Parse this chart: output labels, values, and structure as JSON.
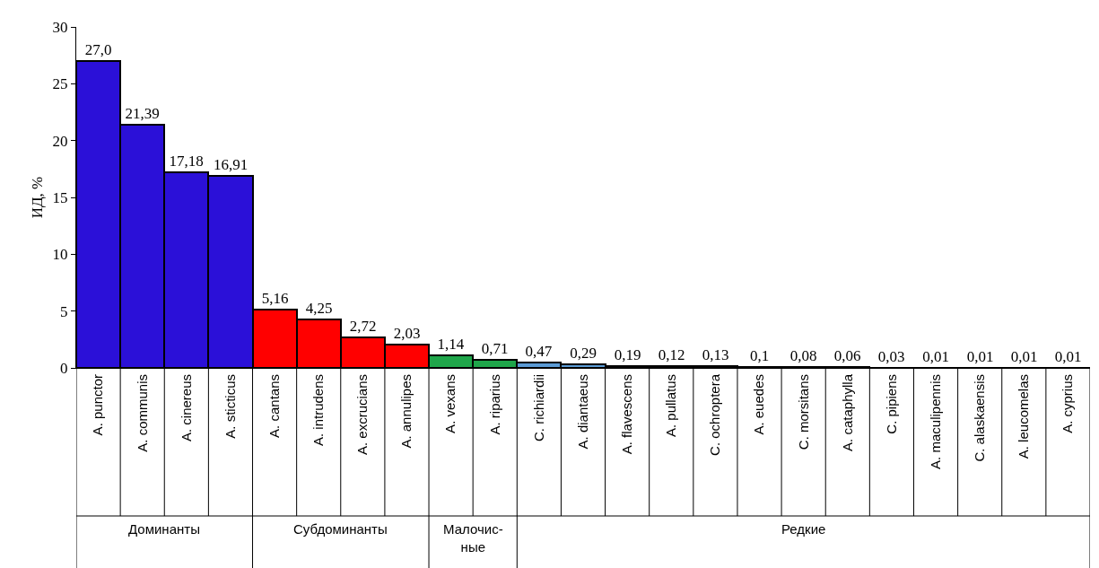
{
  "chart_data": {
    "type": "bar",
    "ylabel": "ИД, %",
    "categories": [
      "A. punctor",
      "A. communis",
      "A. cinereus",
      "A. sticticus",
      "A. cantans",
      "A. intrudens",
      "A. excrucians",
      "A. annulipes",
      "A. vexans",
      "A. riparius",
      "C. richiardii",
      "A. diantaeus",
      "A. flavescens",
      "A. pullatus",
      "C. ochroptera",
      "A. euedes",
      "C. morsitans",
      "A. cataphylla",
      "C. pipiens",
      "A. maculipennis",
      "C. alaskaensis",
      "A. leucomelas",
      "A. cyprius"
    ],
    "values": [
      27.0,
      21.39,
      17.18,
      16.91,
      5.16,
      4.25,
      2.72,
      2.03,
      1.14,
      0.71,
      0.47,
      0.29,
      0.19,
      0.12,
      0.13,
      0.1,
      0.08,
      0.06,
      0.03,
      0.01,
      0.01,
      0.01,
      0.01
    ],
    "value_labels": [
      "27,0",
      "21,39",
      "17,18",
      "16,91",
      "5,16",
      "4,25",
      "2,72",
      "2,03",
      "1,14",
      "0,71",
      "0,47",
      "0,29",
      "0,19",
      "0,12",
      "0,13",
      "0,1",
      "0,08",
      "0,06",
      "0,03",
      "0,01",
      "0,01",
      "0,01",
      "0,01"
    ],
    "colors": [
      "#2b10d8",
      "#2b10d8",
      "#2b10d8",
      "#2b10d8",
      "#ff0000",
      "#ff0000",
      "#ff0000",
      "#ff0000",
      "#1fa64a",
      "#1fa64a",
      "#5b9bd5",
      "#5b9bd5",
      "#000000",
      "#000000",
      "#000000",
      "#000000",
      "#000000",
      "#000000",
      "#000000",
      "#000000",
      "#000000",
      "#000000",
      "#000000"
    ],
    "ylim": [
      0,
      30
    ],
    "yticks": [
      0,
      5,
      10,
      15,
      20,
      25,
      30
    ],
    "annotations": [
      "Доминанты",
      "Субдоминанты",
      "Малочис-\nные",
      "Редкие"
    ]
  }
}
